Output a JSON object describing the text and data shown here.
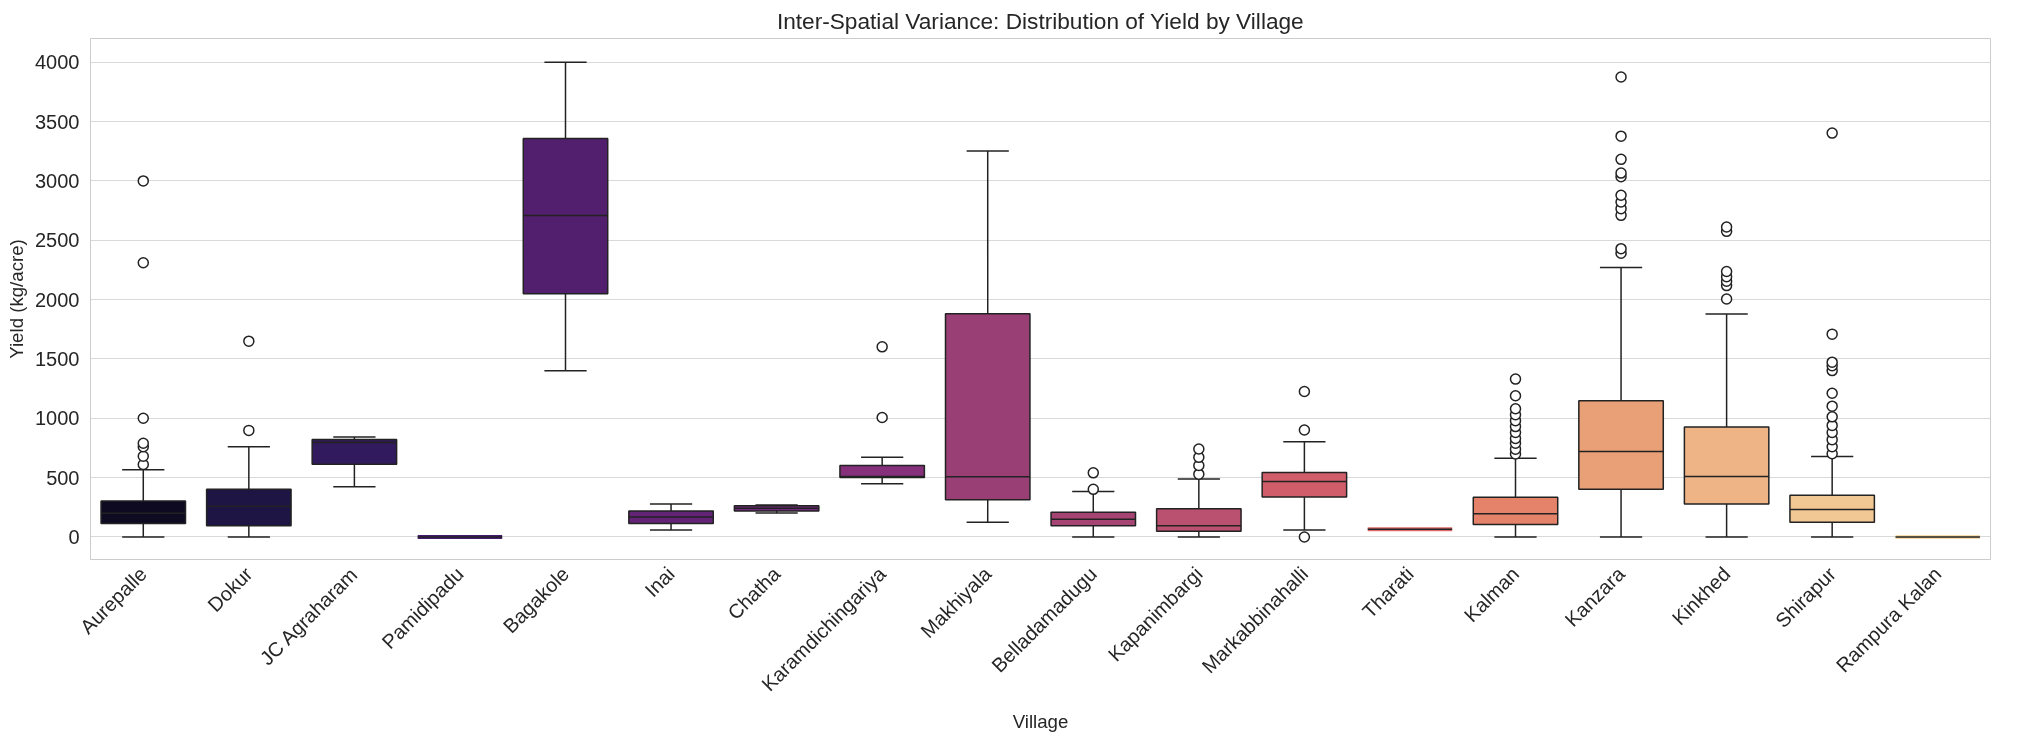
{
  "chart_data": {
    "type": "box",
    "title": "Inter-Spatial Variance: Distribution of Yield by Village",
    "xlabel": "Village",
    "ylabel": "Yield (kg/acre)",
    "categories": [
      "Aurepalle",
      "Dokur",
      "JC Agraharam",
      "Pamidipadu",
      "Bagakole",
      "Inai",
      "Chatha",
      "Karamdichingariya",
      "Makhiyala",
      "Belladamadugu",
      "Kapanimbargi",
      "Markabbinahalli",
      "Tharati",
      "Kalman",
      "Kanzara",
      "Kinkhed",
      "Shirapur",
      "Rampura Kalan"
    ],
    "colors": [
      "#0d0a22",
      "#1f1544",
      "#321a5e",
      "#45196f",
      "#511f6e",
      "#632478",
      "#72287c",
      "#86307c",
      "#993f76",
      "#a64474",
      "#bb5171",
      "#d05e6a",
      "#dd6c68",
      "#e4826a",
      "#eaa077",
      "#eeb486",
      "#f1c794",
      "#f5dcaa"
    ],
    "boxes": [
      {
        "low": 0,
        "q1": 113,
        "median": 200,
        "q3": 303,
        "high": 566,
        "outliers": [
          610,
          680,
          760,
          790,
          1000,
          2310,
          3000
        ]
      },
      {
        "low": 0,
        "q1": 95,
        "median": 259,
        "q3": 401,
        "high": 759,
        "outliers": [
          898,
          1650
        ]
      },
      {
        "low": 423,
        "q1": 613,
        "median": 796,
        "q3": 821,
        "high": 843
      },
      {
        "low": 0,
        "q1": 0,
        "median": 0,
        "q3": 0,
        "high": 0
      },
      {
        "low": 1400,
        "q1": 2050,
        "median": 2708,
        "q3": 3358,
        "high": 4000
      },
      {
        "low": 58,
        "q1": 113,
        "median": 168,
        "q3": 219,
        "high": 277
      },
      {
        "low": 201,
        "q1": 219,
        "median": 241,
        "q3": 263,
        "high": 270
      },
      {
        "low": 449,
        "q1": 500,
        "median": 510,
        "q3": 602,
        "high": 671,
        "outliers": [
          1007,
          1602
        ]
      },
      {
        "low": 124,
        "q1": 314,
        "median": 507,
        "q3": 1880,
        "high": 3252
      },
      {
        "low": 0,
        "q1": 95,
        "median": 150,
        "q3": 208,
        "high": 383,
        "outliers": [
          401,
          540
        ]
      },
      {
        "low": 0,
        "q1": 47,
        "median": 95,
        "q3": 237,
        "high": 489,
        "outliers": [
          529,
          602,
          671,
          741
        ]
      },
      {
        "low": 58,
        "q1": 336,
        "median": 467,
        "q3": 544,
        "high": 803,
        "outliers": [
          0,
          901,
          1226
        ]
      },
      {
        "low": 64,
        "q1": 64,
        "median": 64,
        "q3": 64,
        "high": 64
      },
      {
        "low": 0,
        "q1": 105,
        "median": 195,
        "q3": 334,
        "high": 663,
        "outliers": [
          700,
          740,
          790,
          830,
          880,
          930,
          980,
          1030,
          1080,
          1190,
          1330
        ]
      },
      {
        "low": 0,
        "q1": 401,
        "median": 720,
        "q3": 1147,
        "high": 2271,
        "outliers": [
          2391,
          2429,
          2710,
          2766,
          2822,
          2879,
          3036,
          3066,
          3182,
          3377,
          3876
        ]
      },
      {
        "low": 0,
        "q1": 277,
        "median": 510,
        "q3": 926,
        "high": 1878,
        "outliers": [
          2005,
          2118,
          2155,
          2193,
          2237,
          2575,
          2612
        ]
      },
      {
        "low": 0,
        "q1": 124,
        "median": 232,
        "q3": 352,
        "high": 678,
        "outliers": [
          701,
          760,
          820,
          880,
          940,
          1012,
          1102,
          1211,
          1402,
          1443,
          1473,
          1709,
          3403
        ]
      },
      {
        "low": 0,
        "q1": 0,
        "median": 0,
        "q3": 0,
        "high": 0
      }
    ],
    "ylim": [
      -190,
      4200
    ],
    "yticks": [
      0,
      500,
      1000,
      1500,
      2000,
      2500,
      3000,
      3500,
      4000
    ],
    "grid": "y"
  }
}
